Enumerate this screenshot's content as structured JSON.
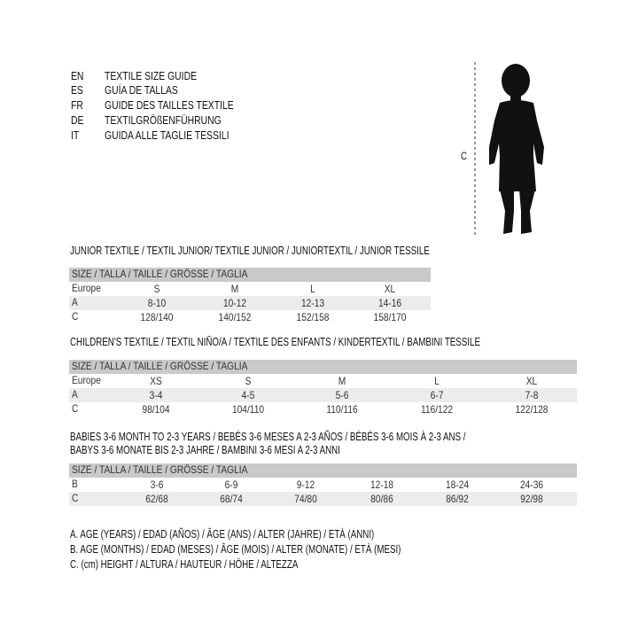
{
  "languages": [
    {
      "code": "EN",
      "text": "TEXTILE SIZE GUIDE"
    },
    {
      "code": "ES",
      "text": "GUÍA DE TALLAS"
    },
    {
      "code": "FR",
      "text": "GUIDE DES TAILLES TEXTILE"
    },
    {
      "code": "DE",
      "text": "TEXTILGRÖßENFÜHRUNG"
    },
    {
      "code": "IT",
      "text": "GUIDA ALLE TAGLIE TESSILI"
    }
  ],
  "figure": {
    "measure_label": "C",
    "icon": "child-silhouette"
  },
  "junior": {
    "title": "JUNIOR TEXTILE / TEXTIL JUNIOR/ TEXTILE JUNIOR / JUNIORTEXTIL / JUNIOR TESSILE",
    "header": "SIZE / TALLA / TAILLE / GRÖSSE / TAGLIA",
    "rows": [
      {
        "label": "Europe",
        "values": [
          "S",
          "M",
          "L",
          "XL"
        ]
      },
      {
        "label": "A",
        "values": [
          "8-10",
          "10-12",
          "12-13",
          "14-16"
        ]
      },
      {
        "label": "C",
        "values": [
          "128/140",
          "140/152",
          "152/158",
          "158/170"
        ]
      }
    ]
  },
  "children": {
    "title": "CHILDREN'S TEXTILE / TEXTIL NIÑO/A / TEXTILE DES ENFANTS / KINDERTEXTIL / BAMBINI TESSILE",
    "header": "SIZE / TALLA / TAILLE / GRÖSSE / TAGLIA",
    "rows": [
      {
        "label": "Europe",
        "values": [
          "XS",
          "S",
          "M",
          "L",
          "XL"
        ]
      },
      {
        "label": "A",
        "values": [
          "3-4",
          "4-5",
          "5-6",
          "6-7",
          "7-8"
        ]
      },
      {
        "label": "C",
        "values": [
          "98/104",
          "104/110",
          "110/116",
          "116/122",
          "122/128"
        ]
      }
    ]
  },
  "babies": {
    "title_line1": "BABIES 3-6 MONTH TO 2-3 YEARS / BEBÉS 3-6 MESES A 2-3 AÑOS / BÉBÉS 3-6 MOIS À 2-3 ANS /",
    "title_line2": "BABYS 3-6 MONATE BIS 2-3 JAHRE / BAMBINI 3-6 MESI A 2-3 ANNI",
    "header": "SIZE / TALLA / TAILLE / GRÖSSE / TAGLIA",
    "rows": [
      {
        "label": "B",
        "values": [
          "3-6",
          "6-9",
          "9-12",
          "12-18",
          "18-24",
          "24-36"
        ]
      },
      {
        "label": "C",
        "values": [
          "62/68",
          "68/74",
          "74/80",
          "80/86",
          "86/92",
          "92/98"
        ]
      }
    ]
  },
  "legend": [
    "A. AGE (YEARS) / EDAD (AÑOS) / ÂGE (ANS) / ALTER (JAHRE) / ETÀ (ANNI)",
    "B. AGE (MONTHS) / EDAD (MESES) / ÂGE (MOIS) / ALTER (MONATE) / ETÀ (MESI)",
    "C. (cm) HEIGHT / ALTURA / HAUTEUR / HÖHE / ALTEZZA"
  ]
}
